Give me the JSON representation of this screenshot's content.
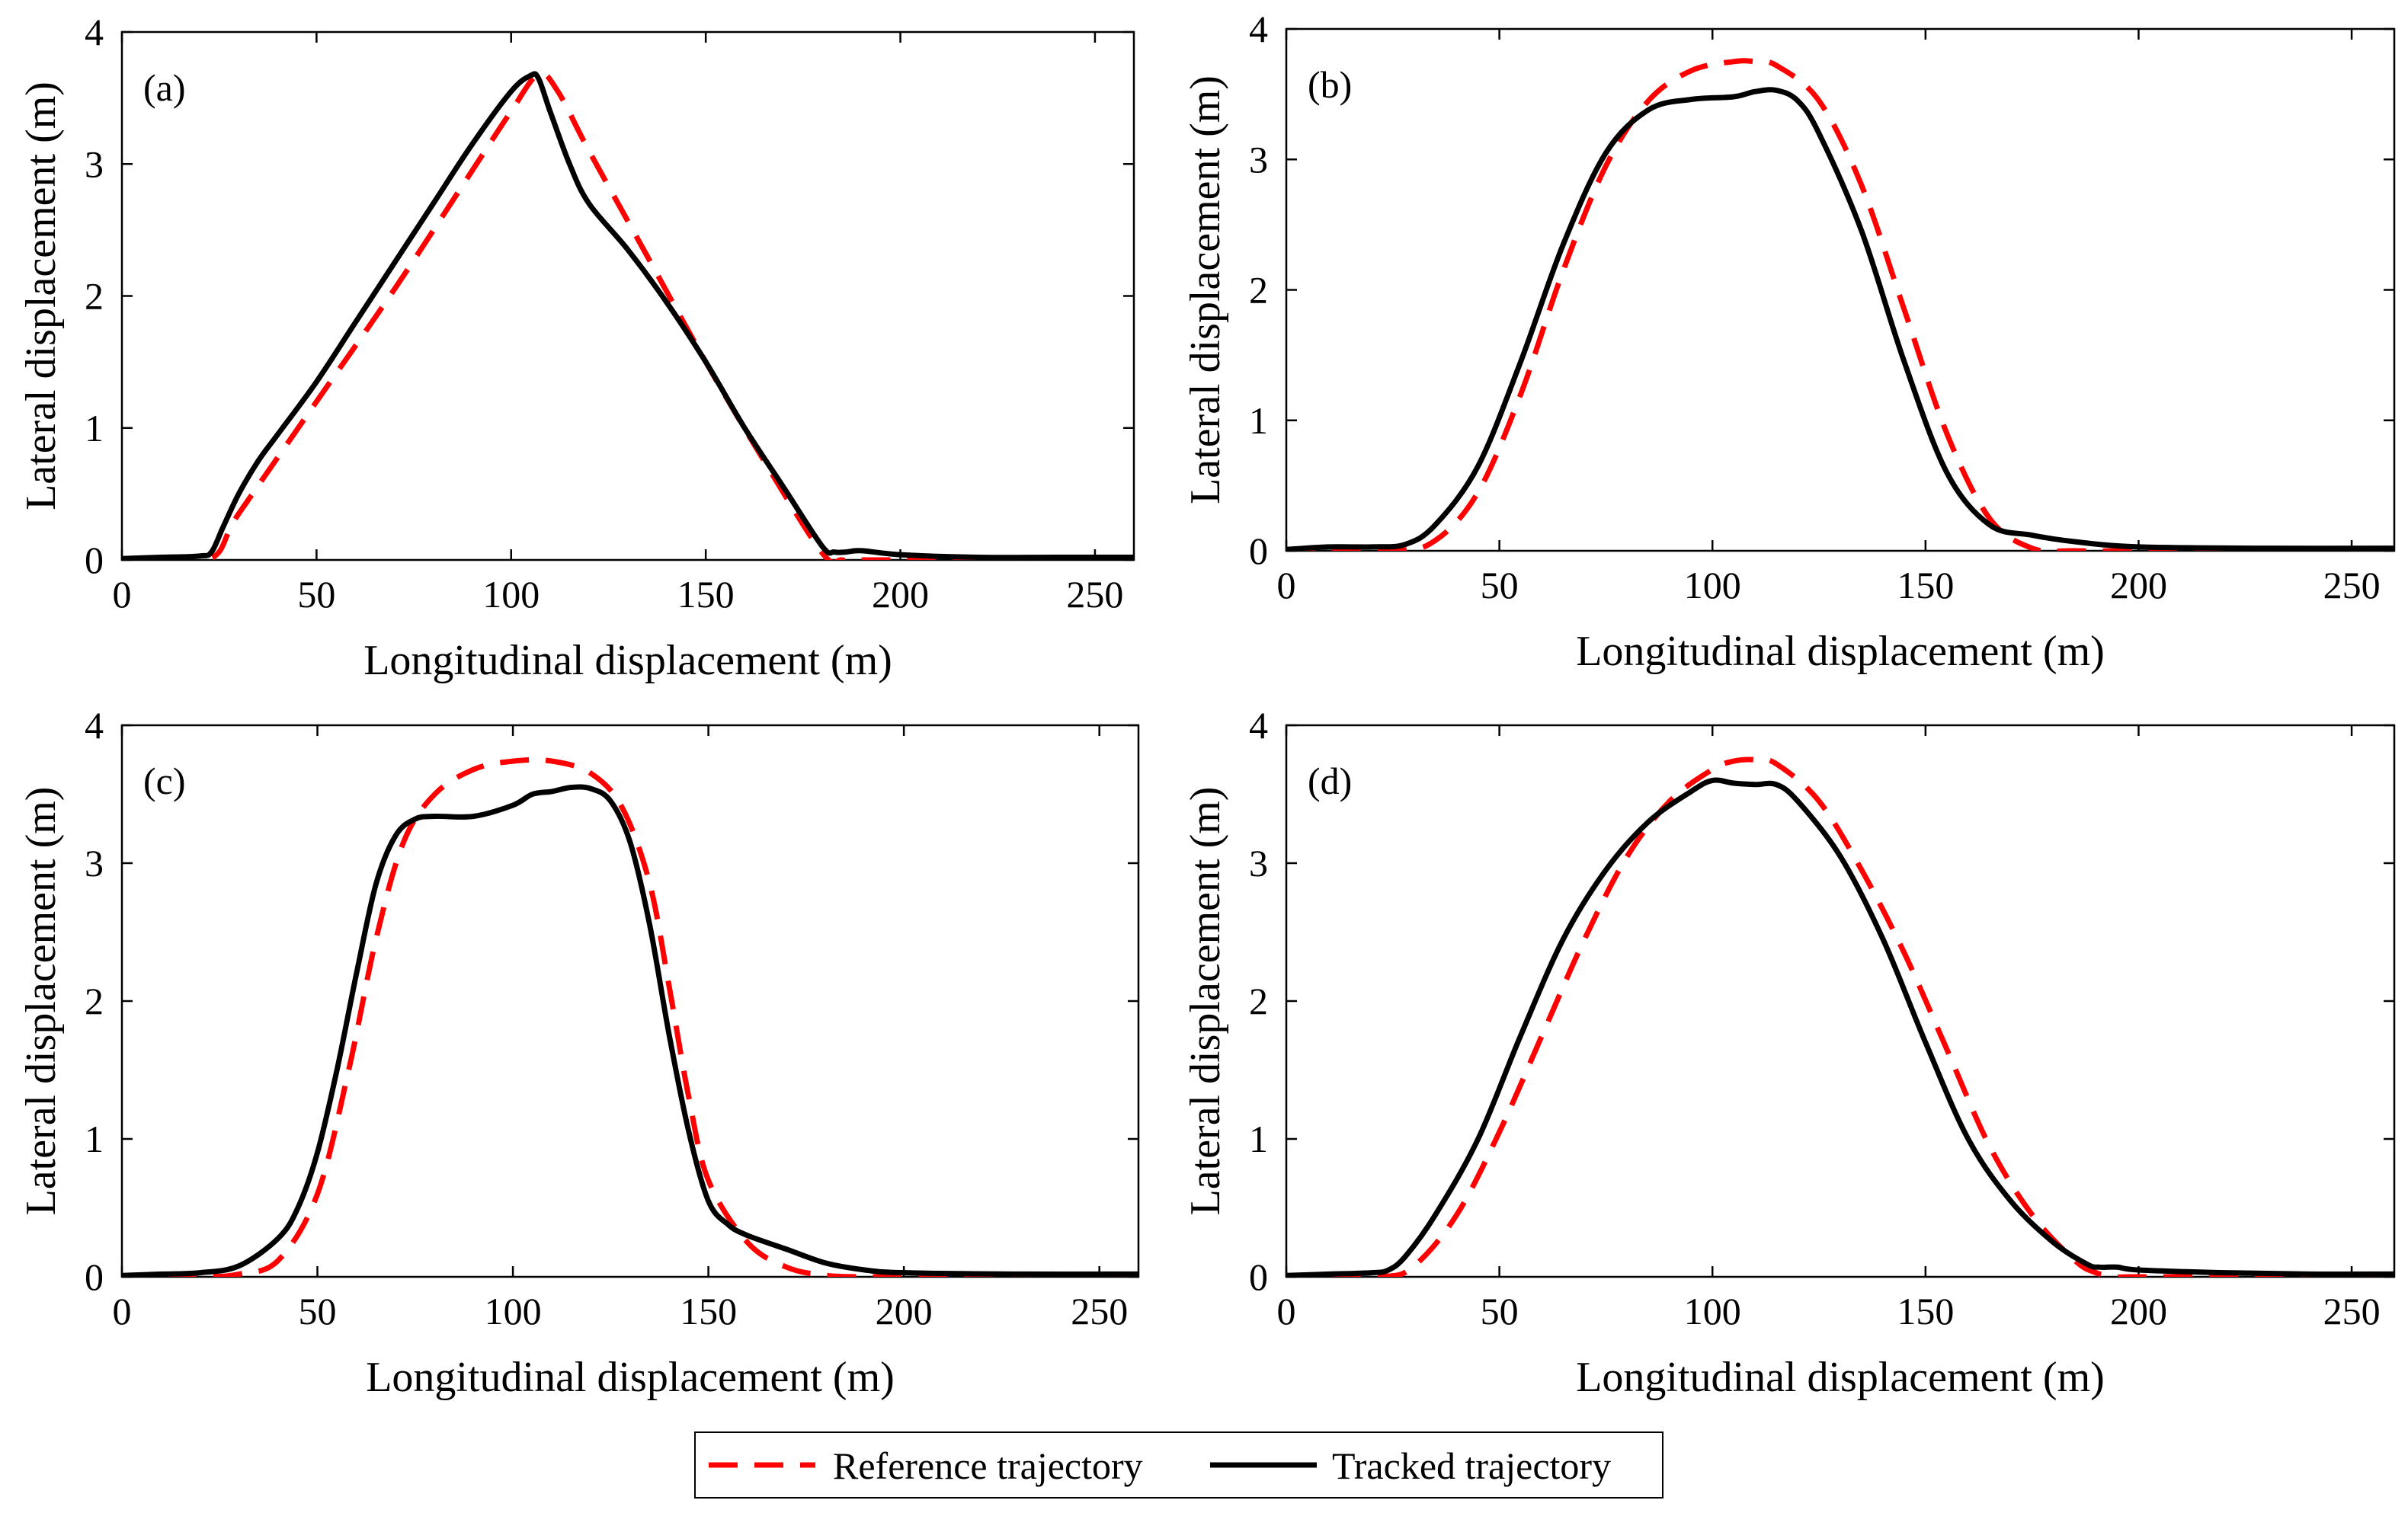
{
  "chart_data": [
    {
      "type": "line",
      "panel_label": "(a)",
      "xlabel": "Longitudinal displacement (m)",
      "ylabel": "Lateral displacement (m)",
      "xlim": [
        0,
        260
      ],
      "ylim": [
        0,
        4
      ],
      "xticks": [
        "0",
        "50",
        "100",
        "150",
        "200",
        "250"
      ],
      "yticks": [
        "0",
        "1",
        "2",
        "3",
        "4"
      ],
      "grid": false,
      "series": [
        {
          "name": "Reference trajectory",
          "color": "#ff0000",
          "style": "dashed",
          "x": [
            0,
            22,
            30,
            50,
            70,
            90,
            100,
            107,
            112,
            120,
            135,
            150,
            165,
            180,
            185,
            190,
            200,
            230,
            260
          ],
          "y": [
            0,
            0,
            0.35,
            1.2,
            2.05,
            2.95,
            3.4,
            3.68,
            3.55,
            3.1,
            2.3,
            1.5,
            0.75,
            0.05,
            0,
            0,
            0,
            0,
            0
          ]
        },
        {
          "name": "Tracked trajectory",
          "color": "#000000",
          "style": "solid",
          "x": [
            0,
            10,
            20,
            23,
            26,
            30,
            35,
            40,
            50,
            60,
            70,
            80,
            90,
            100,
            105,
            107,
            110,
            115,
            120,
            130,
            140,
            150,
            160,
            170,
            180,
            183,
            186,
            190,
            200,
            220,
            240,
            260
          ],
          "y": [
            0.01,
            0.02,
            0.03,
            0.06,
            0.25,
            0.5,
            0.75,
            0.95,
            1.35,
            1.8,
            2.25,
            2.7,
            3.15,
            3.55,
            3.67,
            3.65,
            3.4,
            3.0,
            2.7,
            2.35,
            1.95,
            1.5,
            1.0,
            0.55,
            0.1,
            0.06,
            0.06,
            0.07,
            0.04,
            0.02,
            0.02,
            0.02
          ]
        }
      ]
    },
    {
      "type": "line",
      "panel_label": "(b)",
      "xlabel": "Longitudinal displacement (m)",
      "ylabel": "Lateral displacement (m)",
      "xlim": [
        0,
        260
      ],
      "ylim": [
        0,
        4
      ],
      "xticks": [
        "0",
        "50",
        "100",
        "150",
        "200",
        "250"
      ],
      "yticks": [
        "0",
        "1",
        "2",
        "3",
        "4"
      ],
      "grid": false,
      "series": [
        {
          "name": "Reference trajectory",
          "color": "#ff0000",
          "style": "dashed",
          "x": [
            0,
            25,
            35,
            45,
            55,
            65,
            75,
            85,
            95,
            105,
            110,
            115,
            125,
            135,
            145,
            155,
            165,
            175,
            185,
            200,
            230,
            260
          ],
          "y": [
            0,
            0,
            0.08,
            0.45,
            1.2,
            2.15,
            2.95,
            3.45,
            3.68,
            3.75,
            3.75,
            3.72,
            3.45,
            2.8,
            1.85,
            0.9,
            0.25,
            0.02,
            0,
            0,
            0,
            0
          ]
        },
        {
          "name": "Tracked trajectory",
          "color": "#000000",
          "style": "solid",
          "x": [
            0,
            10,
            20,
            28,
            35,
            45,
            55,
            65,
            75,
            85,
            95,
            105,
            110,
            115,
            120,
            125,
            135,
            145,
            155,
            165,
            175,
            185,
            200,
            230,
            260
          ],
          "y": [
            0.01,
            0.03,
            0.03,
            0.05,
            0.2,
            0.65,
            1.45,
            2.35,
            3.05,
            3.38,
            3.46,
            3.48,
            3.52,
            3.53,
            3.45,
            3.2,
            2.45,
            1.45,
            0.6,
            0.2,
            0.12,
            0.07,
            0.03,
            0.02,
            0.02
          ]
        }
      ]
    },
    {
      "type": "line",
      "panel_label": "(c)",
      "xlabel": "Longitudinal displacement (m)",
      "ylabel": "Lateral displacement (m)",
      "xlim": [
        0,
        260
      ],
      "ylim": [
        0,
        4
      ],
      "xticks": [
        "0",
        "50",
        "100",
        "150",
        "200",
        "250"
      ],
      "yticks": [
        "0",
        "1",
        "2",
        "3",
        "4"
      ],
      "grid": false,
      "series": [
        {
          "name": "Reference trajectory",
          "color": "#ff0000",
          "style": "dashed",
          "x": [
            0,
            20,
            30,
            40,
            50,
            58,
            65,
            72,
            80,
            90,
            100,
            110,
            120,
            128,
            135,
            140,
            145,
            150,
            160,
            170,
            180,
            190,
            200,
            230,
            260
          ],
          "y": [
            0,
            0,
            0.02,
            0.12,
            0.6,
            1.5,
            2.45,
            3.15,
            3.5,
            3.68,
            3.74,
            3.74,
            3.65,
            3.4,
            2.85,
            2.1,
            1.3,
            0.7,
            0.25,
            0.07,
            0.01,
            0,
            0,
            0,
            0
          ]
        },
        {
          "name": "Tracked trajectory",
          "color": "#000000",
          "style": "solid",
          "x": [
            0,
            10,
            20,
            30,
            40,
            45,
            50,
            55,
            60,
            65,
            70,
            75,
            80,
            90,
            100,
            105,
            110,
            115,
            120,
            125,
            130,
            135,
            140,
            145,
            150,
            155,
            160,
            170,
            180,
            190,
            200,
            230,
            260
          ],
          "y": [
            0.01,
            0.02,
            0.03,
            0.08,
            0.28,
            0.5,
            0.9,
            1.5,
            2.2,
            2.85,
            3.2,
            3.32,
            3.34,
            3.34,
            3.42,
            3.5,
            3.52,
            3.55,
            3.54,
            3.45,
            3.15,
            2.55,
            1.75,
            1.05,
            0.55,
            0.38,
            0.3,
            0.2,
            0.1,
            0.05,
            0.03,
            0.02,
            0.02
          ]
        }
      ]
    },
    {
      "type": "line",
      "panel_label": "(d)",
      "xlabel": "Longitudinal displacement (m)",
      "ylabel": "Lateral displacement (m)",
      "xlim": [
        0,
        260
      ],
      "ylim": [
        0,
        4
      ],
      "xticks": [
        "0",
        "50",
        "100",
        "150",
        "200",
        "250"
      ],
      "yticks": [
        "0",
        "1",
        "2",
        "3",
        "4"
      ],
      "grid": false,
      "series": [
        {
          "name": "Reference trajectory",
          "color": "#ff0000",
          "style": "dashed",
          "x": [
            0,
            22,
            30,
            40,
            50,
            60,
            70,
            80,
            90,
            100,
            105,
            110,
            115,
            125,
            135,
            145,
            155,
            165,
            175,
            185,
            190,
            195,
            200,
            230,
            260
          ],
          "y": [
            0,
            0,
            0.08,
            0.45,
            1.05,
            1.75,
            2.45,
            3.05,
            3.45,
            3.68,
            3.74,
            3.75,
            3.72,
            3.45,
            2.95,
            2.35,
            1.65,
            0.95,
            0.45,
            0.12,
            0.03,
            0,
            0,
            0,
            0
          ]
        },
        {
          "name": "Tracked trajectory",
          "color": "#000000",
          "style": "solid",
          "x": [
            0,
            10,
            20,
            24,
            28,
            35,
            45,
            55,
            65,
            75,
            85,
            95,
            100,
            105,
            110,
            115,
            120,
            130,
            140,
            150,
            160,
            170,
            180,
            188,
            191,
            195,
            200,
            220,
            240,
            260
          ],
          "y": [
            0.01,
            0.02,
            0.03,
            0.05,
            0.15,
            0.45,
            1.0,
            1.75,
            2.45,
            2.95,
            3.3,
            3.52,
            3.6,
            3.58,
            3.57,
            3.57,
            3.45,
            3.05,
            2.45,
            1.7,
            1.0,
            0.55,
            0.25,
            0.09,
            0.07,
            0.07,
            0.05,
            0.03,
            0.02,
            0.02
          ]
        }
      ]
    }
  ],
  "legend": {
    "placement": "bottom-center",
    "items": [
      {
        "label": "Reference trajectory",
        "color": "#ff0000",
        "style": "dashed"
      },
      {
        "label": "Tracked trajectory",
        "color": "#000000",
        "style": "solid"
      }
    ]
  }
}
